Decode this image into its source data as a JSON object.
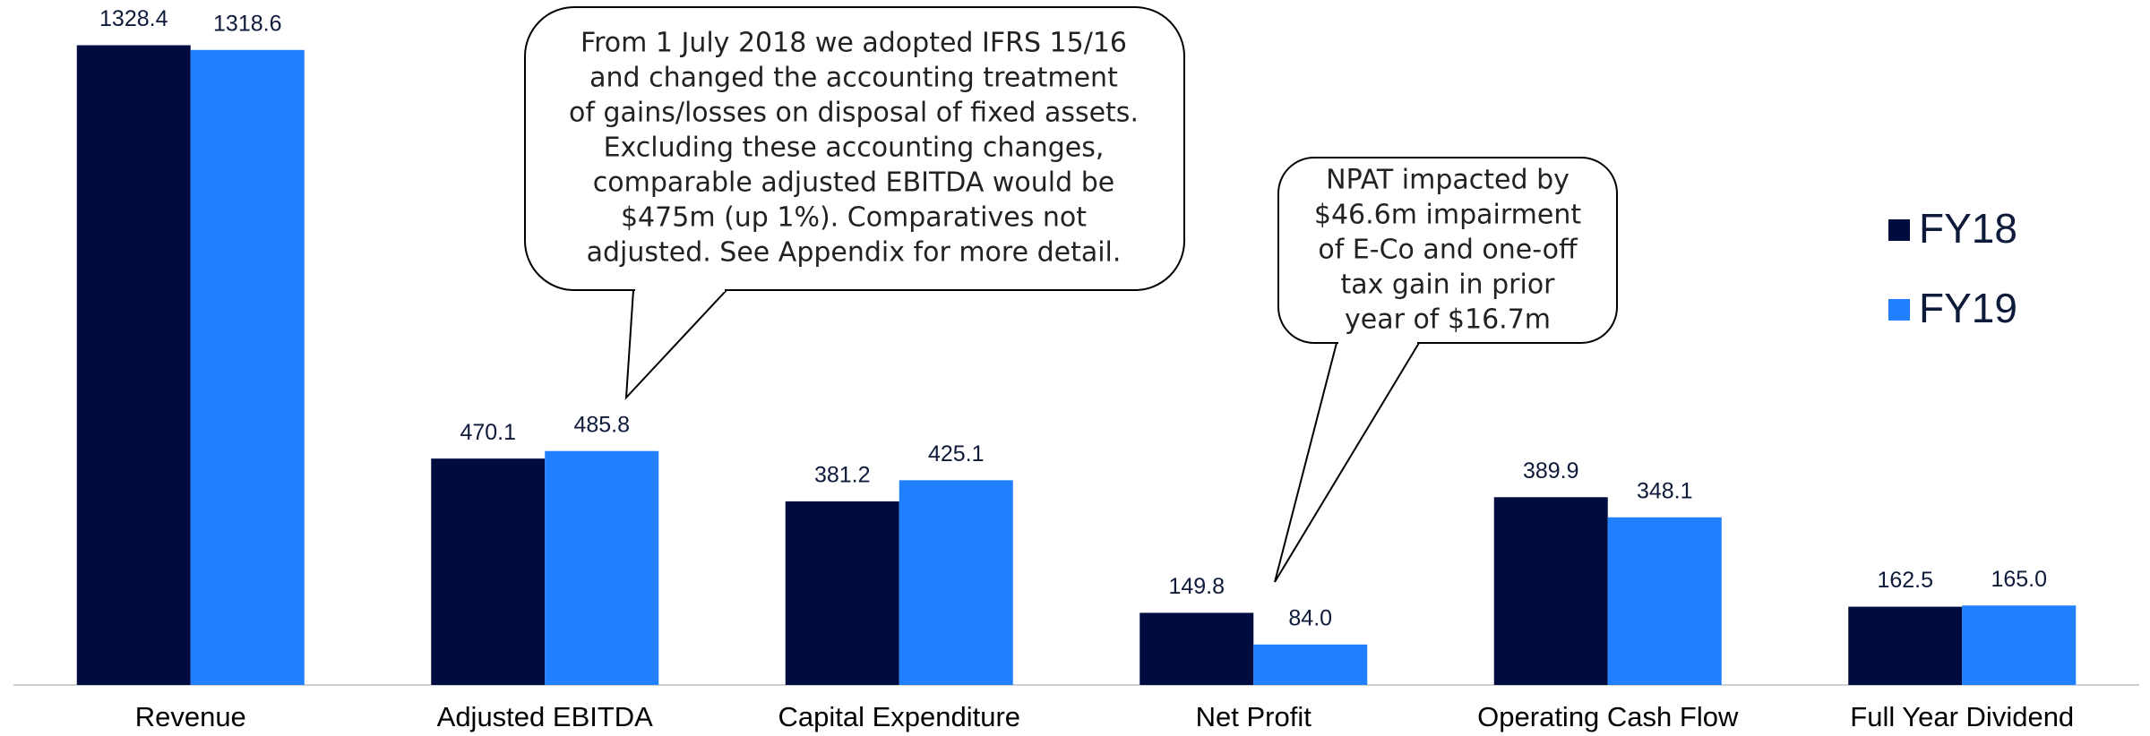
{
  "chart_data": {
    "type": "bar",
    "categories": [
      "Revenue",
      "Adjusted EBITDA",
      "Capital Expenditure",
      "Net Profit",
      "Operating Cash Flow",
      "Full Year Dividend"
    ],
    "series": [
      {
        "name": "FY18",
        "color": "#000c3f",
        "values": [
          1328.4,
          470.1,
          381.2,
          149.8,
          389.9,
          162.5
        ],
        "value_labels": [
          "1328.4",
          "470.1",
          "381.2",
          "149.8",
          "389.9",
          "162.5"
        ]
      },
      {
        "name": "FY19",
        "color": "#2080ff",
        "values": [
          1318.6,
          485.8,
          425.1,
          84,
          348.1,
          165
        ],
        "value_labels": [
          "1318.6",
          "485.8",
          "425.1",
          "84.0",
          "348.1",
          "165.0"
        ]
      }
    ],
    "ylim": [
      0,
      1400
    ],
    "legend": "right",
    "annotations": [
      {
        "lines": [
          "From 1 July 2018 we adopted IFRS 15/16",
          "and changed the accounting treatment",
          "of gains/losses on disposal of fixed assets.",
          "Excluding these accounting changes,",
          "comparable adjusted EBITDA would be",
          "$475m (up 1%). Comparatives not",
          "adjusted.  See Appendix for more detail."
        ]
      },
      {
        "lines": [
          "NPAT impacted by",
          "$46.6m impairment",
          "of E-Co and one-off",
          "tax gain in prior",
          "year of $16.7m"
        ]
      }
    ]
  }
}
